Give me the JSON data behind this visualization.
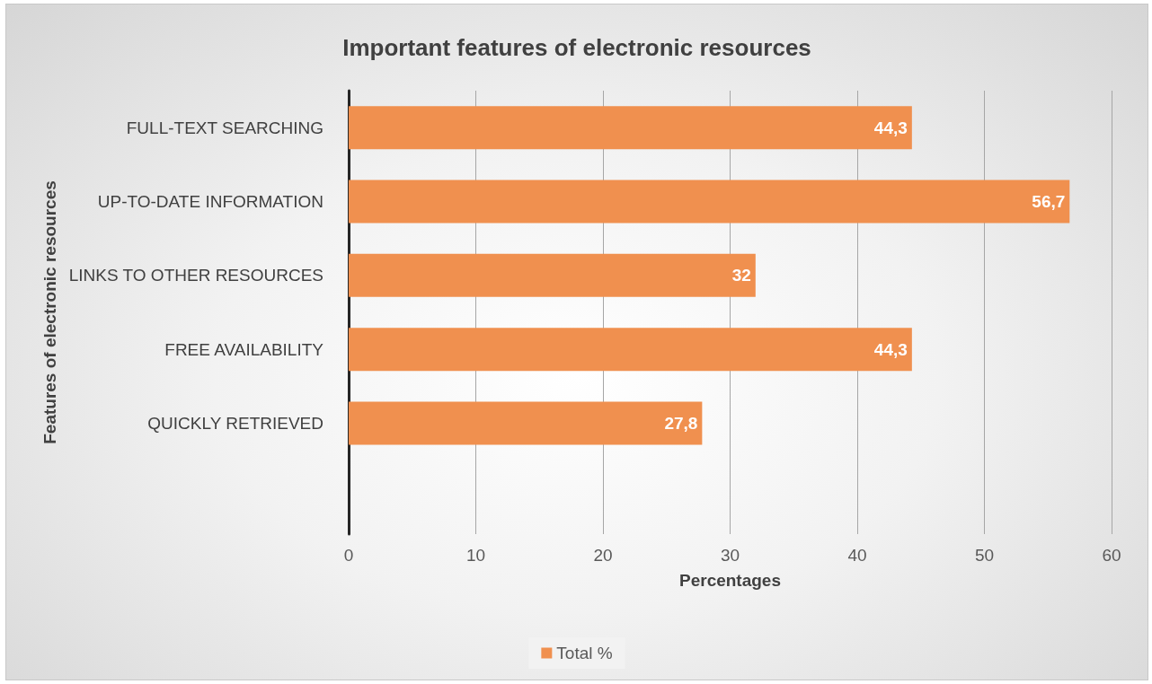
{
  "chart_data": {
    "type": "bar",
    "orientation": "horizontal",
    "title": "Important features of electronic resources",
    "xlabel": "Percentages",
    "ylabel": "Features of electronic resources",
    "categories": [
      "FULL-TEXT SEARCHING",
      "UP-TO-DATE INFORMATION",
      "LINKS TO OTHER RESOURCES",
      "FREE AVAILABILITY",
      "QUICKLY RETRIEVED",
      null
    ],
    "series": [
      {
        "name": "Total %",
        "color": "#f0904f",
        "values": [
          44.3,
          56.7,
          32,
          44.3,
          27.8,
          null
        ],
        "value_labels": [
          "44,3",
          "56,7",
          "32",
          "44,3",
          "27,8",
          null
        ]
      }
    ],
    "xlim": [
      0,
      60
    ],
    "xticks": [
      0,
      10,
      20,
      30,
      40,
      50,
      60
    ],
    "grid": "x",
    "legend": "bottom"
  }
}
